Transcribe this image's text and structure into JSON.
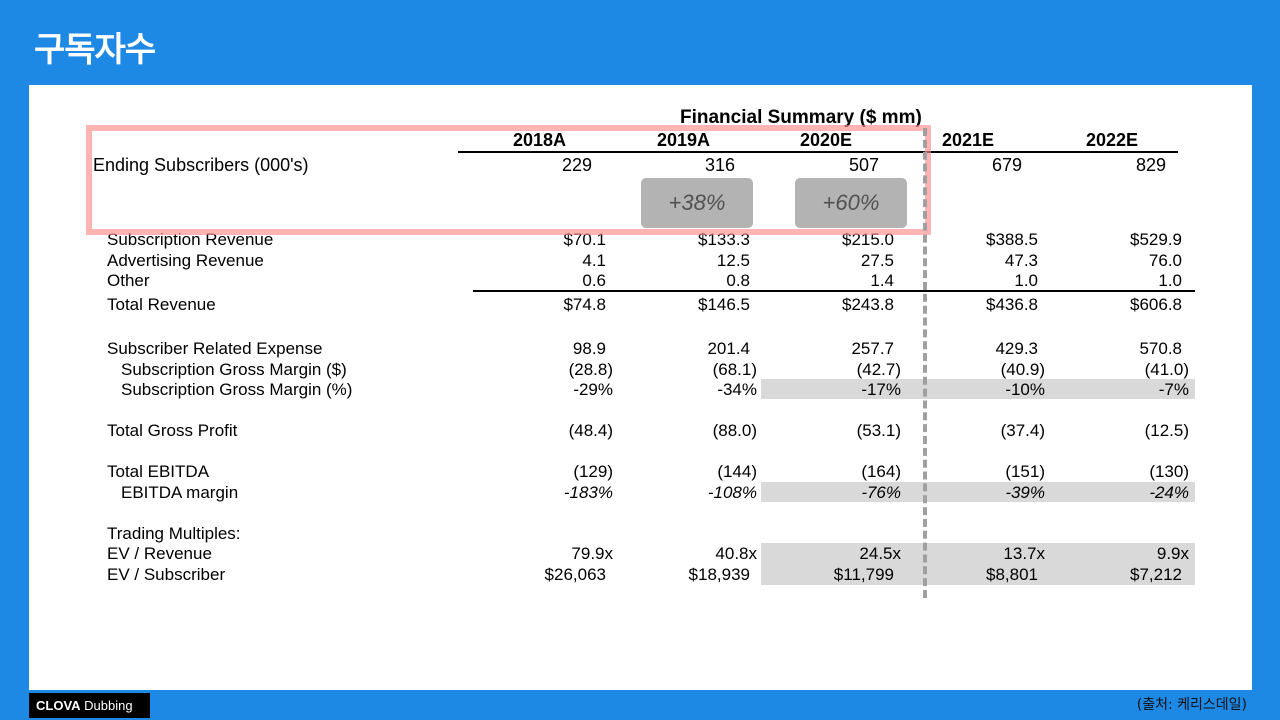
{
  "slide_title": "구독자수",
  "table_title": "Financial Summary ($ mm)",
  "years": [
    "2018A",
    "2019A",
    "2020E",
    "2021E",
    "2022E"
  ],
  "ending_subscribers": {
    "label": "Ending Subscribers (000's)",
    "values": [
      "229",
      "316",
      "507",
      "679",
      "829"
    ]
  },
  "growth": [
    "+38%",
    "+60%"
  ],
  "rows": [
    {
      "label": "Subscription Revenue",
      "values": [
        "$70.1",
        "$133.3",
        "$215.0",
        "$388.5",
        "$529.9"
      ]
    },
    {
      "label": "Advertising Revenue",
      "values": [
        "4.1",
        "12.5",
        "27.5",
        "47.3",
        "76.0"
      ]
    },
    {
      "label": "Other",
      "values": [
        "0.6",
        "0.8",
        "1.4",
        "1.0",
        "1.0"
      ]
    },
    {
      "label": "Total Revenue",
      "values": [
        "$74.8",
        "$146.5",
        "$243.8",
        "$436.8",
        "$606.8"
      ]
    },
    {
      "label": "Subscriber Related Expense",
      "values": [
        "98.9",
        "201.4",
        "257.7",
        "429.3",
        "570.8"
      ]
    },
    {
      "label": "Subscription Gross Margin ($)",
      "values": [
        "(28.8)",
        "(68.1)",
        "(42.7)",
        "(40.9)",
        "(41.0)"
      ]
    },
    {
      "label": "Subscription Gross Margin (%)",
      "values": [
        "-29%",
        "-34%",
        "-17%",
        "-10%",
        "-7%"
      ]
    },
    {
      "label": "Total Gross Profit",
      "values": [
        "(48.4)",
        "(88.0)",
        "(53.1)",
        "(37.4)",
        "(12.5)"
      ]
    },
    {
      "label": "Total EBITDA",
      "values": [
        "(129)",
        "(144)",
        "(164)",
        "(151)",
        "(130)"
      ]
    },
    {
      "label": "EBITDA margin",
      "values": [
        "-183%",
        "-108%",
        "-76%",
        "-39%",
        "-24%"
      ]
    },
    {
      "label": "Trading Multiples:",
      "values": []
    },
    {
      "label": "EV / Revenue",
      "values": [
        "79.9x",
        "40.8x",
        "24.5x",
        "13.7x",
        "9.9x"
      ]
    },
    {
      "label": "EV / Subscriber",
      "values": [
        "$26,063",
        "$18,939",
        "$11,799",
        "$8,801",
        "$7,212"
      ]
    }
  ],
  "logo": {
    "brand": "CLOVA",
    "product": "Dubbing"
  },
  "source": "(출처: 케리스데일)"
}
